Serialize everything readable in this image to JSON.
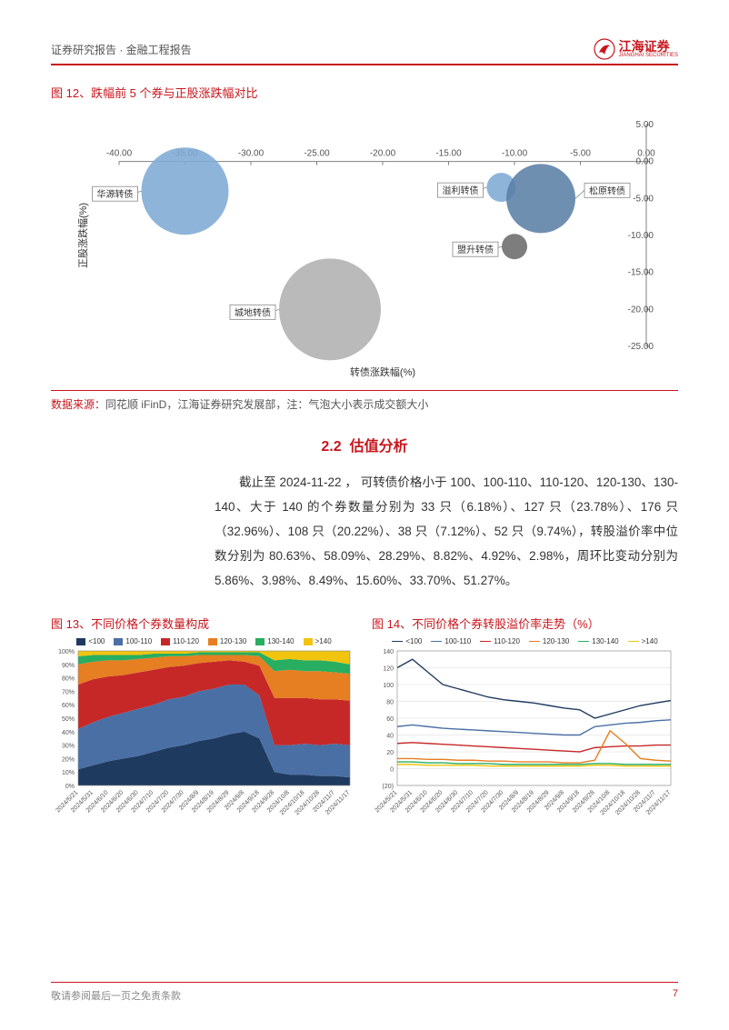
{
  "header": {
    "doc_type": "证券研究报告 · 金融工程报告",
    "brand_cn": "江海证券",
    "brand_en": "JIANGHAI SECURITIES"
  },
  "fig12": {
    "title": "图 12、跌幅前 5 个券与正股涨跌幅对比",
    "xlabel": "转债涨跌幅(%)",
    "ylabel": "正股涨跌幅(%)",
    "xlim": [
      -40,
      0
    ],
    "ylim": [
      -25,
      5
    ],
    "xtick_step": 5,
    "ytick_step": 5,
    "bg_color": "#ffffff",
    "axis_color": "#808080",
    "tick_fontsize": 10,
    "label_fontsize": 11,
    "bubbles": [
      {
        "name": "华源转债",
        "x": -35,
        "y": -4,
        "r": 48,
        "color": "#7eaad4",
        "label_side": "left"
      },
      {
        "name": "溢利转债",
        "x": -11,
        "y": -3.5,
        "r": 16,
        "color": "#7eaad4",
        "label_side": "left"
      },
      {
        "name": "松原转债",
        "x": -8,
        "y": -5,
        "r": 38,
        "color": "#5b7fa6",
        "label_side": "right"
      },
      {
        "name": "盟升转债",
        "x": -10,
        "y": -11.5,
        "r": 14,
        "color": "#6b6b6b",
        "label_side": "left"
      },
      {
        "name": "城地转债",
        "x": -24,
        "y": -20,
        "r": 56,
        "color": "#b0b0b0",
        "label_side": "left"
      }
    ],
    "callout_border": "#888888",
    "callout_fontsize": 10
  },
  "source": {
    "label": "数据来源：",
    "text": "同花顺 iFinD，江海证券研究发展部，注：气泡大小表示成交额大小"
  },
  "section": {
    "number": "2.2",
    "title": "估值分析"
  },
  "body_paragraph": "截止至 2024-11-22 ， 可转债价格小于 100、100-110、110-120、120-130、130-140、大于 140 的个券数量分别为 33 只（6.18%）、127 只（23.78%）、176 只（32.96%）、108 只（20.22%）、38 只（7.12%）、52 只（9.74%），转股溢价率中位数分别为 80.63%、58.09%、28.29%、8.82%、4.92%、2.98%，周环比变动分别为 5.86%、3.98%、8.49%、15.60%、33.70%、51.27%。",
  "fig13": {
    "title": "图 13、不同价格个券数量构成",
    "type": "stacked-area",
    "ylim": [
      0,
      100
    ],
    "ytick_step": 10,
    "ytick_suffix": "%",
    "bg_color": "#ffffff",
    "grid_color": "#d9d9d9",
    "categories": [
      "<100",
      "100-110",
      "110-120",
      "120-130",
      "130-140",
      ">140"
    ],
    "colors": [
      "#1f3a5f",
      "#4a6fa5",
      "#c62828",
      "#e67e22",
      "#27ae60",
      "#f1c40f"
    ],
    "x_labels": [
      "2024/5/21",
      "2024/5/31",
      "2024/6/10",
      "2024/6/20",
      "2024/6/30",
      "2024/7/10",
      "2024/7/20",
      "2024/7/30",
      "2024/8/9",
      "2024/8/19",
      "2024/8/29",
      "2024/9/8",
      "2024/9/18",
      "2024/9/28",
      "2024/10/8",
      "2024/10/18",
      "2024/10/28",
      "2024/11/7",
      "2024/11/17"
    ],
    "data": [
      [
        12,
        15,
        18,
        20,
        22,
        25,
        28,
        30,
        33,
        35,
        38,
        40,
        35,
        10,
        8,
        8,
        7,
        7,
        6
      ],
      [
        30,
        32,
        33,
        34,
        35,
        35,
        36,
        36,
        37,
        37,
        37,
        35,
        32,
        20,
        22,
        23,
        23,
        24,
        24
      ],
      [
        33,
        32,
        30,
        28,
        27,
        26,
        24,
        23,
        21,
        20,
        18,
        17,
        22,
        35,
        35,
        34,
        34,
        33,
        33
      ],
      [
        15,
        13,
        12,
        11,
        10,
        9,
        8,
        7,
        6,
        5,
        4,
        5,
        7,
        20,
        21,
        20,
        21,
        20,
        20
      ],
      [
        6,
        5,
        4,
        4,
        3,
        3,
        2,
        2,
        2,
        2,
        2,
        2,
        3,
        8,
        8,
        8,
        8,
        8,
        7
      ],
      [
        4,
        3,
        3,
        3,
        3,
        2,
        2,
        2,
        1,
        1,
        1,
        1,
        1,
        7,
        6,
        7,
        7,
        8,
        10
      ]
    ],
    "label_fontsize": 7,
    "legend_fontsize": 8
  },
  "fig14": {
    "title": "图 14、不同价格个券转股溢价率走势（%）",
    "type": "line",
    "ylim": [
      -20,
      140
    ],
    "yticks": [
      -20,
      0,
      20,
      40,
      60,
      80,
      100,
      120,
      140
    ],
    "bg_color": "#ffffff",
    "grid_color": "#d9d9d9",
    "categories": [
      "<100",
      "100-110",
      "110-120",
      "120-130",
      "130-140",
      ">140"
    ],
    "colors": [
      "#1f3a5f",
      "#4a6fa5",
      "#c62828",
      "#e67e22",
      "#27ae60",
      "#f1c40f"
    ],
    "x_labels": [
      "2024/5/21",
      "2024/5/31",
      "2024/6/10",
      "2024/6/20",
      "2024/6/30",
      "2024/7/10",
      "2024/7/20",
      "2024/7/30",
      "2024/8/9",
      "2024/8/19",
      "2024/8/29",
      "2024/9/8",
      "2024/9/18",
      "2024/9/28",
      "2024/10/8",
      "2024/10/18",
      "2024/10/28",
      "2024/11/7",
      "2024/11/17"
    ],
    "series": [
      [
        120,
        130,
        115,
        100,
        95,
        90,
        85,
        82,
        80,
        78,
        75,
        72,
        70,
        60,
        65,
        70,
        75,
        78,
        81
      ],
      [
        50,
        52,
        50,
        48,
        47,
        46,
        45,
        44,
        43,
        42,
        41,
        40,
        40,
        50,
        52,
        54,
        55,
        57,
        58
      ],
      [
        30,
        31,
        30,
        29,
        28,
        27,
        26,
        25,
        24,
        23,
        22,
        21,
        20,
        25,
        26,
        27,
        27,
        28,
        28
      ],
      [
        12,
        12,
        11,
        11,
        10,
        10,
        9,
        9,
        8,
        8,
        8,
        7,
        7,
        10,
        45,
        30,
        12,
        10,
        9
      ],
      [
        8,
        8,
        7,
        7,
        6,
        6,
        6,
        5,
        5,
        5,
        5,
        5,
        5,
        6,
        6,
        5,
        5,
        5,
        5
      ],
      [
        5,
        5,
        4,
        4,
        4,
        4,
        3,
        3,
        3,
        3,
        3,
        3,
        3,
        4,
        4,
        3,
        3,
        3,
        3
      ]
    ],
    "line_width": 1.4,
    "label_fontsize": 7
  },
  "footer": {
    "disclaimer": "敬请参阅最后一页之免责条款",
    "page_num": "7"
  }
}
